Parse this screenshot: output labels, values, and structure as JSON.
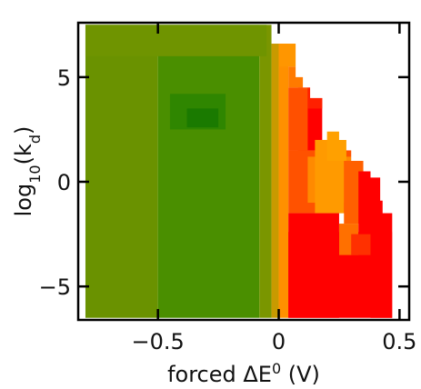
{
  "chart_data": {
    "type": "heatmap",
    "title": "",
    "xlabel": {
      "prefix": "forced ΔE",
      "sup": "0",
      "suffix": " (V)"
    },
    "ylabel": {
      "prefix": "log",
      "sub1": "10",
      "mid": "(k",
      "sub2": "d",
      "suffix": ")"
    },
    "xlim": [
      -0.83,
      0.54
    ],
    "ylim": [
      -6.6,
      7.6
    ],
    "xticks": [
      -0.5,
      0,
      0.5
    ],
    "xtick_labels": [
      "−0.5",
      "0",
      "0.5"
    ],
    "yticks": [
      -5,
      0,
      5
    ],
    "ytick_labels": [
      "−5",
      "0",
      "5"
    ],
    "grid": false,
    "colors": {
      "green_dark": "#1f8000",
      "green": "#3f8f00",
      "olive": "#6f9400",
      "olive_light": "#8f9800",
      "amber": "#d7a000",
      "orange": "#ff8a00",
      "red_orange": "#ff4a00",
      "red": "#ff0000"
    },
    "regions": [
      {
        "label": "olive",
        "x": [
          -0.8,
          -0.5
        ],
        "y": [
          -6.5,
          7.5
        ],
        "color": "#6a9200"
      },
      {
        "label": "green",
        "x": [
          -0.5,
          -0.08
        ],
        "y": [
          -6.5,
          7.5
        ],
        "color": "#4a8f00"
      },
      {
        "label": "olive",
        "x": [
          -0.08,
          -0.03
        ],
        "y": [
          -6.5,
          7.5
        ],
        "color": "#7a9600"
      },
      {
        "label": "amber",
        "x": [
          -0.03,
          0.0
        ],
        "y": [
          -6.5,
          6.6
        ],
        "color": "#c89a00"
      },
      {
        "label": "orange",
        "x": [
          0.0,
          0.04
        ],
        "y": [
          -6.5,
          6.6
        ],
        "color": "#ff9000"
      },
      {
        "label": "red",
        "x": [
          0.04,
          0.47
        ],
        "y": [
          -6.5,
          -2.4
        ],
        "color": "#ff0000"
      }
    ],
    "cells": [
      {
        "x0": -0.8,
        "x1": -0.05,
        "y0": 6.0,
        "y1": 7.5,
        "color": "#6f9400"
      },
      {
        "x0": -0.45,
        "x1": -0.22,
        "y0": 2.5,
        "y1": 4.2,
        "color": "#2f8600"
      },
      {
        "x0": -0.38,
        "x1": -0.25,
        "y0": 2.6,
        "y1": 3.5,
        "color": "#1a7a00"
      },
      {
        "x0": 0.0,
        "x1": 0.08,
        "y0": 5.5,
        "y1": 6.6,
        "color": "#ff9600"
      },
      {
        "x0": 0.04,
        "x1": 0.1,
        "y0": 4.5,
        "y1": 5.5,
        "color": "#ff7a00"
      },
      {
        "x0": 0.08,
        "x1": 0.18,
        "y0": 1.5,
        "y1": 4.5,
        "color": "#ff0000"
      },
      {
        "x0": 0.04,
        "x1": 0.12,
        "y0": 1.5,
        "y1": 4.5,
        "color": "#ff5000"
      },
      {
        "x0": 0.12,
        "x1": 0.18,
        "y0": 3.5,
        "y1": 4.5,
        "color": "#ff2000"
      },
      {
        "x0": 0.04,
        "x1": 0.35,
        "y0": -1.5,
        "y1": 1.5,
        "color": "#ff5200"
      },
      {
        "x0": 0.12,
        "x1": 0.3,
        "y0": -1.0,
        "y1": 1.2,
        "color": "#ff8a00"
      },
      {
        "x0": 0.15,
        "x1": 0.27,
        "y0": -1.5,
        "y1": 2.0,
        "color": "#ff9a00"
      },
      {
        "x0": 0.2,
        "x1": 0.28,
        "y0": 1.0,
        "y1": 2.4,
        "color": "#ffa000"
      },
      {
        "x0": 0.27,
        "x1": 0.35,
        "y0": -2.0,
        "y1": 1.0,
        "color": "#ff6000"
      },
      {
        "x0": 0.25,
        "x1": 0.33,
        "y0": -3.5,
        "y1": -2.0,
        "color": "#ff7000"
      },
      {
        "x0": 0.3,
        "x1": 0.38,
        "y0": -3.5,
        "y1": -2.5,
        "color": "#ff3000"
      },
      {
        "x0": 0.33,
        "x1": 0.43,
        "y0": -2.5,
        "y1": 0.5,
        "color": "#ff0000"
      },
      {
        "x0": 0.38,
        "x1": 0.47,
        "y0": -6.5,
        "y1": -1.5,
        "color": "#ff0000"
      },
      {
        "x0": 0.04,
        "x1": 0.25,
        "y0": -6.5,
        "y1": -1.5,
        "color": "#ff0000"
      }
    ],
    "boundary": [
      [
        -0.83,
        7.6
      ],
      [
        0.0,
        7.6
      ],
      [
        0.0,
        6.6
      ],
      [
        0.07,
        6.6
      ],
      [
        0.07,
        5.0
      ],
      [
        0.13,
        5.0
      ],
      [
        0.13,
        4.0
      ],
      [
        0.2,
        4.0
      ],
      [
        0.2,
        2.5
      ],
      [
        0.25,
        2.5
      ],
      [
        0.25,
        2.0
      ],
      [
        0.3,
        2.0
      ],
      [
        0.3,
        1.0
      ],
      [
        0.38,
        1.0
      ],
      [
        0.38,
        0.2
      ],
      [
        0.42,
        0.2
      ],
      [
        0.42,
        -0.9
      ],
      [
        0.44,
        -0.9
      ],
      [
        0.44,
        -1.5
      ],
      [
        0.47,
        -1.5
      ],
      [
        0.47,
        -6.6
      ],
      [
        0.54,
        -6.6
      ],
      [
        0.54,
        7.6
      ]
    ]
  }
}
